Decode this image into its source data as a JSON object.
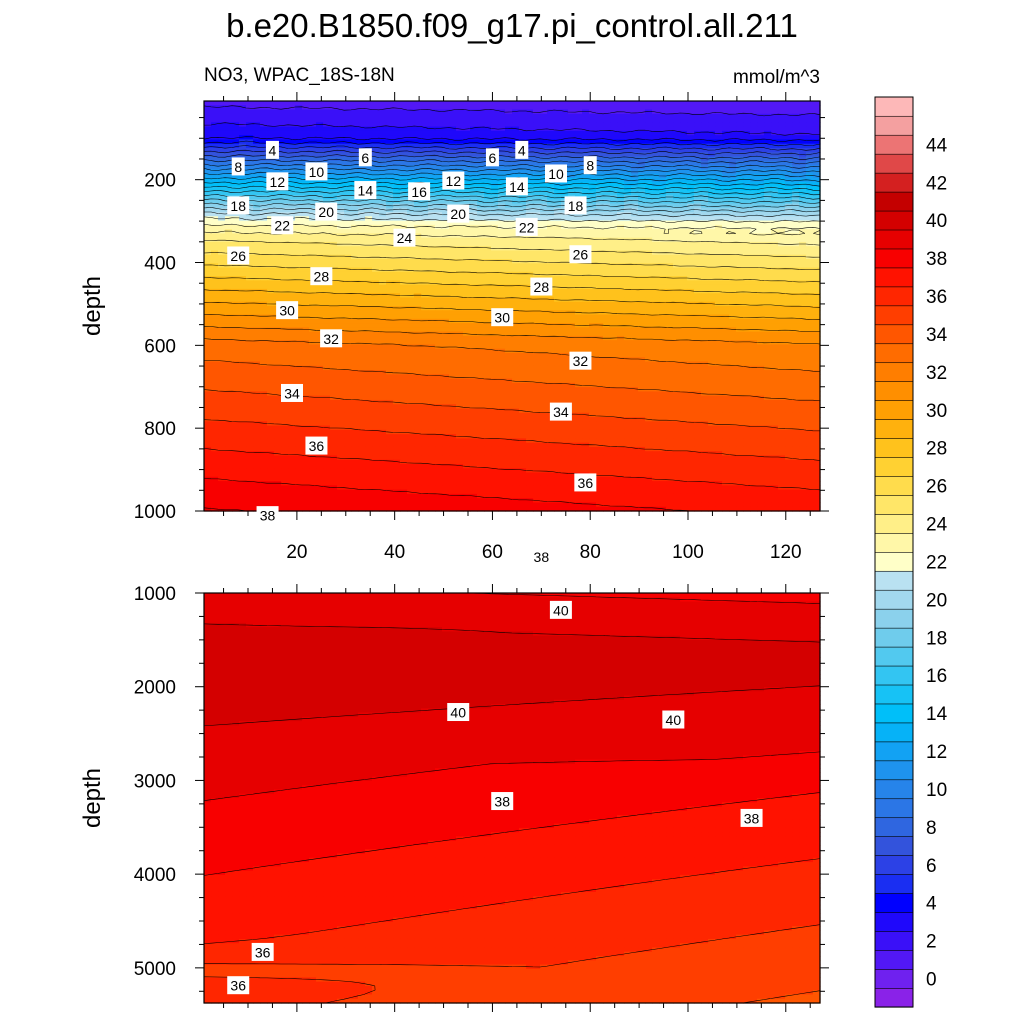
{
  "title": "b.e20.B1850.f09_g17.pi_control.all.211",
  "subtitle_left": "NO3, WPAC_18S-18N",
  "subtitle_right": "mmol/m^3",
  "colors": {
    "levels": [
      -1,
      0,
      1,
      2,
      3,
      4,
      5,
      6,
      7,
      8,
      9,
      10,
      11,
      12,
      13,
      14,
      15,
      16,
      17,
      18,
      19,
      20,
      21,
      22,
      23,
      24,
      25,
      26,
      27,
      28,
      29,
      30,
      31,
      32,
      33,
      34,
      35,
      36,
      37,
      38,
      39,
      40,
      41,
      42,
      43,
      44,
      45,
      46
    ],
    "palette": [
      "#8a22e8",
      "#6f21ef",
      "#5218f5",
      "#3a10f8",
      "#1f08fb",
      "#0000ff",
      "#1a2ef2",
      "#2c41e6",
      "#3353dc",
      "#2f66e0",
      "#2b76e6",
      "#2684ea",
      "#1e93ee",
      "#12a2f3",
      "#06b2f7",
      "#00bff9",
      "#17c2f5",
      "#33c5f2",
      "#52c9ef",
      "#6fccec",
      "#8bd1ec",
      "#a2d8ee",
      "#b9e1f1",
      "#ffffc8",
      "#fff7a8",
      "#ffef88",
      "#ffe668",
      "#ffdc4c",
      "#ffd132",
      "#ffc21c",
      "#ffb10d",
      "#ffa003",
      "#ff8f00",
      "#ff7e00",
      "#ff6c00",
      "#ff5600",
      "#ff3e00",
      "#ff2600",
      "#ff1200",
      "#f80000",
      "#e60000",
      "#d40000",
      "#c40000",
      "#d42020",
      "#e04848",
      "#ec7474",
      "#f4a0a0",
      "#fdb8b8"
    ],
    "line": "#000000",
    "label_bg": "#ffffff"
  },
  "chart_data": [
    {
      "type": "contour",
      "panel": "upper",
      "variable": "NO3",
      "units": "mmol/m^3",
      "xlabel": "",
      "ylabel": "depth",
      "x_range": [
        1,
        127
      ],
      "y_range": [
        10,
        1000
      ],
      "y_inverted": true,
      "x_ticks": [
        20,
        40,
        60,
        80,
        100,
        120
      ],
      "y_ticks": [
        200,
        400,
        600,
        800,
        1000
      ],
      "contour_interval": 1,
      "contour_labels": [
        {
          "text": "4",
          "x": 15,
          "y": 128
        },
        {
          "text": "6",
          "x": 34,
          "y": 146
        },
        {
          "text": "6",
          "x": 60,
          "y": 146
        },
        {
          "text": "4",
          "x": 66,
          "y": 128
        },
        {
          "text": "8",
          "x": 8,
          "y": 168
        },
        {
          "text": "8",
          "x": 80,
          "y": 165
        },
        {
          "text": "10",
          "x": 24,
          "y": 180
        },
        {
          "text": "10",
          "x": 73,
          "y": 185
        },
        {
          "text": "12",
          "x": 16,
          "y": 204
        },
        {
          "text": "12",
          "x": 52,
          "y": 202
        },
        {
          "text": "14",
          "x": 34,
          "y": 225
        },
        {
          "text": "14",
          "x": 65,
          "y": 216
        },
        {
          "text": "16",
          "x": 45,
          "y": 228
        },
        {
          "text": "18",
          "x": 8,
          "y": 262
        },
        {
          "text": "18",
          "x": 77,
          "y": 262
        },
        {
          "text": "20",
          "x": 26,
          "y": 277
        },
        {
          "text": "20",
          "x": 53,
          "y": 282
        },
        {
          "text": "22",
          "x": 17,
          "y": 310
        },
        {
          "text": "22",
          "x": 67,
          "y": 314
        },
        {
          "text": "24",
          "x": 42,
          "y": 340
        },
        {
          "text": "26",
          "x": 8,
          "y": 383
        },
        {
          "text": "26",
          "x": 78,
          "y": 380
        },
        {
          "text": "28",
          "x": 25,
          "y": 433
        },
        {
          "text": "28",
          "x": 70,
          "y": 458
        },
        {
          "text": "30",
          "x": 18,
          "y": 515
        },
        {
          "text": "30",
          "x": 62,
          "y": 532
        },
        {
          "text": "32",
          "x": 27,
          "y": 583
        },
        {
          "text": "32",
          "x": 78,
          "y": 637
        },
        {
          "text": "34",
          "x": 19,
          "y": 715
        },
        {
          "text": "34",
          "x": 74,
          "y": 760
        },
        {
          "text": "36",
          "x": 24,
          "y": 842
        },
        {
          "text": "36",
          "x": 79,
          "y": 931
        },
        {
          "text": "38",
          "x": 14,
          "y": 1010
        },
        {
          "text": "38",
          "x": 70,
          "y": 1110
        }
      ]
    },
    {
      "type": "contour",
      "panel": "lower",
      "variable": "NO3",
      "units": "mmol/m^3",
      "xlabel": "",
      "ylabel": "depth",
      "x_range": [
        1,
        127
      ],
      "y_range": [
        1000,
        5375
      ],
      "y_inverted": true,
      "y_ticks": [
        1000,
        2000,
        3000,
        4000,
        5000
      ],
      "contour_interval": 1,
      "contour_labels": [
        {
          "text": "40",
          "x": 74,
          "y": 1180
        },
        {
          "text": "40",
          "x": 53,
          "y": 2270
        },
        {
          "text": "40",
          "x": 97,
          "y": 2350
        },
        {
          "text": "38",
          "x": 62,
          "y": 3220
        },
        {
          "text": "38",
          "x": 113,
          "y": 3400
        },
        {
          "text": "36",
          "x": 13,
          "y": 4830
        },
        {
          "text": "36",
          "x": 8,
          "y": 5185
        }
      ]
    }
  ],
  "colorbar": {
    "tick_labels": [
      "0",
      "2",
      "4",
      "6",
      "8",
      "10",
      "12",
      "14",
      "16",
      "18",
      "20",
      "22",
      "24",
      "26",
      "28",
      "30",
      "32",
      "34",
      "36",
      "38",
      "40",
      "42",
      "44"
    ]
  }
}
